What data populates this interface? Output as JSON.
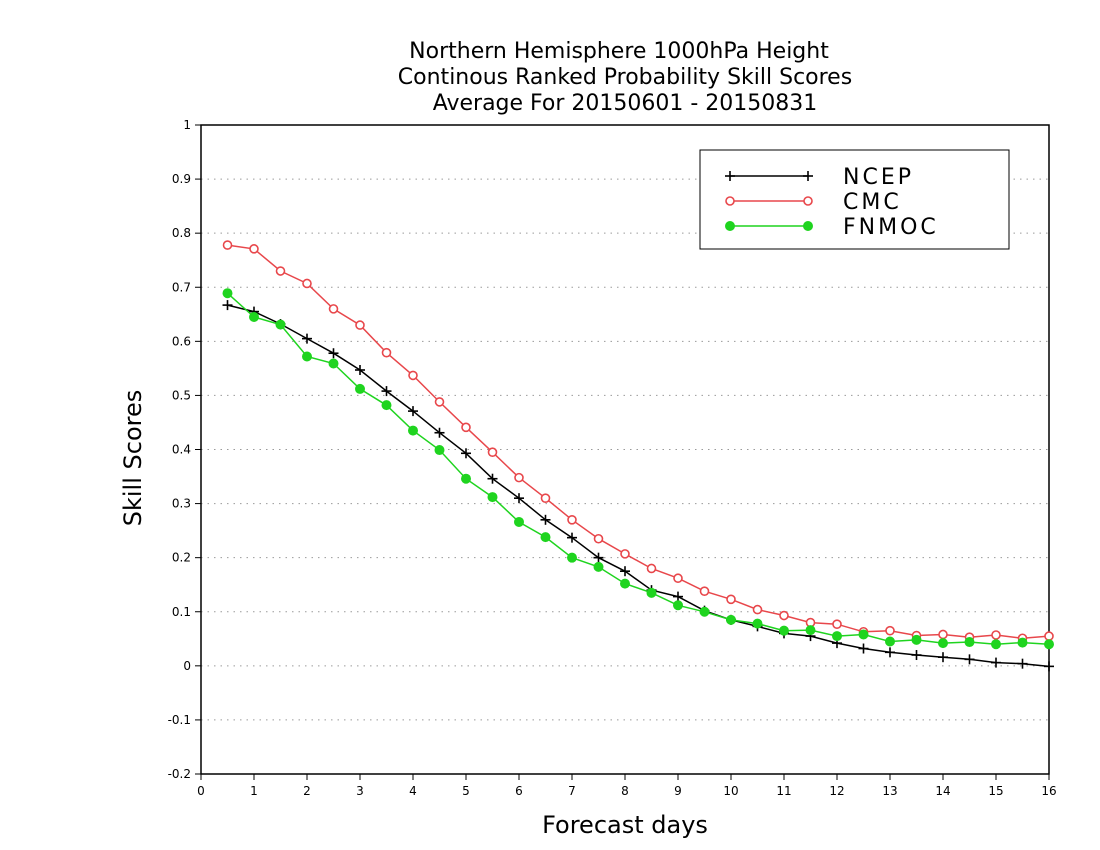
{
  "chart_data": {
    "type": "line",
    "title_lines": [
      "Northern Hemisphere 1000hPa Height",
      "Continous Ranked Probability Skill Scores",
      "Average For 20150601 - 20150831"
    ],
    "xlabel": "Forecast days",
    "ylabel": "Skill Scores",
    "xlim": [
      0,
      16
    ],
    "ylim": [
      -0.2,
      1
    ],
    "x_ticks": [
      0,
      1,
      2,
      3,
      4,
      5,
      6,
      7,
      8,
      9,
      10,
      11,
      12,
      13,
      14,
      15,
      16
    ],
    "x_tick_labels": [
      "0",
      "1",
      "2",
      "3",
      "4",
      "5",
      "6",
      "7",
      "8",
      "9",
      "10",
      "11",
      "12",
      "13",
      "14",
      "15",
      "16"
    ],
    "y_ticks": [
      -0.2,
      -0.1,
      0,
      0.1,
      0.2,
      0.3,
      0.4,
      0.5,
      0.6,
      0.7,
      0.8,
      0.9,
      1
    ],
    "y_tick_labels": [
      "-0.2",
      "-0.1",
      "0",
      "0.1",
      "0.2",
      "0.3",
      "0.4",
      "0.5",
      "0.6",
      "0.7",
      "0.8",
      "0.9",
      "1"
    ],
    "grid": "horizontal-dotted",
    "legend_position": "top-right",
    "x": [
      0.5,
      1,
      1.5,
      2,
      2.5,
      3,
      3.5,
      4,
      4.5,
      5,
      5.5,
      6,
      6.5,
      7,
      7.5,
      8,
      8.5,
      9,
      9.5,
      10,
      10.5,
      11,
      11.5,
      12,
      12.5,
      13,
      13.5,
      14,
      14.5,
      15,
      15.5,
      16
    ],
    "series": [
      {
        "name": "NCEP",
        "color": "#000000",
        "marker": "plus",
        "values": [
          0.667,
          0.655,
          0.632,
          0.605,
          0.578,
          0.547,
          0.508,
          0.471,
          0.431,
          0.393,
          0.346,
          0.31,
          0.27,
          0.237,
          0.2,
          0.175,
          0.14,
          0.128,
          0.102,
          0.085,
          0.073,
          0.06,
          0.055,
          0.042,
          0.032,
          0.025,
          0.02,
          0.016,
          0.012,
          0.006,
          0.004,
          -0.001
        ]
      },
      {
        "name": "CMC",
        "color": "#e8474b",
        "marker": "open-circle",
        "values": [
          0.778,
          0.771,
          0.73,
          0.707,
          0.66,
          0.63,
          0.579,
          0.537,
          0.488,
          0.441,
          0.395,
          0.348,
          0.31,
          0.27,
          0.235,
          0.207,
          0.18,
          0.162,
          0.138,
          0.123,
          0.104,
          0.093,
          0.08,
          0.077,
          0.063,
          0.065,
          0.056,
          0.058,
          0.053,
          0.057,
          0.051,
          0.055
        ]
      },
      {
        "name": "FNMOC",
        "color": "#1fd41f",
        "marker": "filled-circle",
        "values": [
          0.689,
          0.645,
          0.631,
          0.572,
          0.559,
          0.512,
          0.482,
          0.435,
          0.399,
          0.346,
          0.312,
          0.266,
          0.238,
          0.2,
          0.183,
          0.152,
          0.135,
          0.112,
          0.1,
          0.085,
          0.078,
          0.065,
          0.066,
          0.055,
          0.058,
          0.045,
          0.048,
          0.042,
          0.044,
          0.04,
          0.043,
          0.04
        ]
      }
    ]
  }
}
